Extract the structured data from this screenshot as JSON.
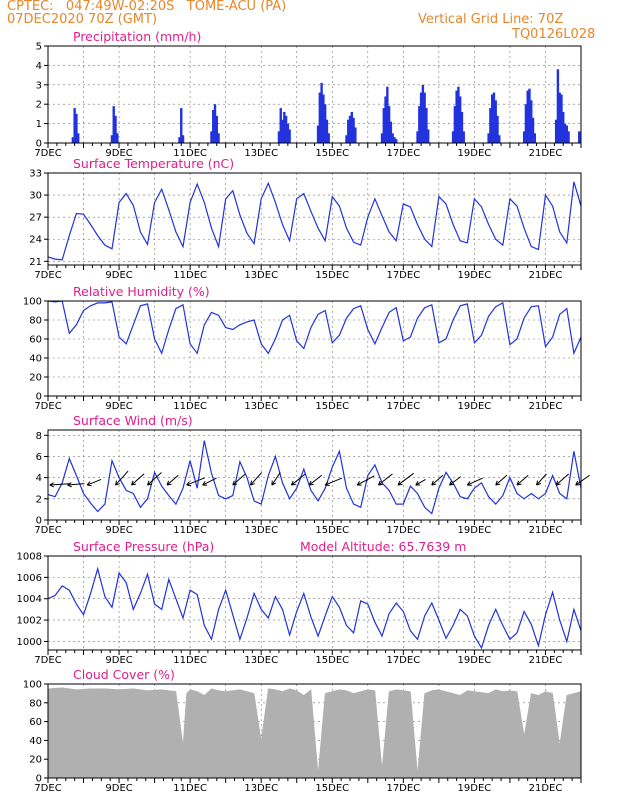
{
  "header": {
    "org_line": "CPTEC:   047:49W-02:20S   TOME-ACU (PA)",
    "date_line": "07DEC2020 70Z (GMT)",
    "grid_line": "Vertical Grid Line: 70Z",
    "code": "TQ0126L028"
  },
  "colors": {
    "header": "#e8862a",
    "title": "#e01e8c",
    "series": "#2233dd",
    "cloud": "#b0b0b0",
    "wind_arrow": "#000000"
  },
  "chart_data": [
    {
      "type": "bar",
      "title": "Precipitation (mm/h)",
      "x_unit": "day",
      "xlim": [
        7,
        22
      ],
      "ylim": [
        0,
        5
      ],
      "yticks": [
        0,
        1,
        2,
        3,
        4,
        5
      ],
      "xtick_labels": [
        "7DEC",
        "9DEC",
        "11DEC",
        "13DEC",
        "15DEC",
        "17DEC",
        "19DEC",
        "21DEC"
      ],
      "x": [
        7.7,
        7.75,
        7.8,
        7.85,
        8.8,
        8.85,
        8.9,
        8.95,
        10.7,
        10.75,
        10.8,
        11.6,
        11.65,
        11.7,
        11.75,
        11.8,
        13.5,
        13.55,
        13.6,
        13.65,
        13.7,
        13.75,
        13.8,
        14.6,
        14.65,
        14.7,
        14.75,
        14.8,
        14.85,
        14.9,
        15.4,
        15.45,
        15.5,
        15.55,
        15.6,
        15.65,
        16.4,
        16.45,
        16.5,
        16.55,
        16.6,
        16.65,
        16.7,
        16.75,
        16.8,
        17.4,
        17.45,
        17.5,
        17.55,
        17.6,
        17.65,
        17.7,
        18.4,
        18.45,
        18.5,
        18.55,
        18.6,
        18.65,
        18.7,
        19.4,
        19.45,
        19.5,
        19.55,
        19.6,
        19.65,
        19.7,
        20.4,
        20.45,
        20.5,
        20.55,
        20.6,
        20.65,
        20.7,
        21.3,
        21.35,
        21.4,
        21.45,
        21.5,
        21.55,
        21.6,
        21.65,
        21.95
      ],
      "values": [
        0.3,
        1.8,
        1.5,
        0.5,
        0.4,
        1.9,
        1.4,
        0.5,
        0.3,
        1.8,
        0.4,
        0.6,
        1.7,
        2.0,
        1.4,
        0.5,
        0.6,
        1.8,
        1.2,
        1.6,
        1.4,
        1.0,
        0.7,
        0.9,
        2.6,
        3.1,
        2.5,
        2.0,
        1.2,
        0.5,
        0.4,
        1.2,
        1.4,
        1.6,
        1.3,
        0.8,
        0.5,
        1.8,
        2.4,
        2.9,
        1.9,
        1.1,
        0.5,
        0.3,
        0.2,
        0.6,
        1.9,
        2.6,
        3.0,
        2.6,
        1.8,
        0.7,
        0.6,
        1.9,
        2.7,
        2.9,
        2.4,
        1.6,
        0.6,
        0.5,
        1.8,
        2.5,
        2.6,
        2.2,
        1.4,
        0.4,
        0.6,
        2.0,
        2.7,
        2.8,
        2.2,
        1.3,
        0.5,
        1.2,
        3.8,
        2.6,
        2.5,
        1.6,
        1.0,
        0.9,
        0.6,
        0.6
      ]
    },
    {
      "type": "line",
      "title": "Surface Temperature (nC)",
      "xlim": [
        7,
        22
      ],
      "ylim": [
        20.5,
        33
      ],
      "yticks": [
        21,
        24,
        27,
        30,
        33
      ],
      "xtick_labels": [
        "7DEC",
        "9DEC",
        "11DEC",
        "13DEC",
        "15DEC",
        "17DEC",
        "19DEC",
        "21DEC"
      ],
      "x": [
        7,
        7.2,
        7.4,
        7.6,
        7.8,
        8.0,
        8.2,
        8.4,
        8.6,
        8.8,
        9.0,
        9.2,
        9.4,
        9.6,
        9.8,
        10.0,
        10.2,
        10.4,
        10.6,
        10.8,
        11.0,
        11.2,
        11.4,
        11.6,
        11.8,
        12.0,
        12.2,
        12.4,
        12.6,
        12.8,
        13.0,
        13.2,
        13.4,
        13.6,
        13.8,
        14.0,
        14.2,
        14.4,
        14.6,
        14.8,
        15.0,
        15.2,
        15.4,
        15.6,
        15.8,
        16.0,
        16.2,
        16.4,
        16.6,
        16.8,
        17.0,
        17.2,
        17.4,
        17.6,
        17.8,
        18.0,
        18.2,
        18.4,
        18.6,
        18.8,
        19.0,
        19.2,
        19.4,
        19.6,
        19.8,
        20.0,
        20.2,
        20.4,
        20.6,
        20.8,
        21.0,
        21.2,
        21.4,
        21.6,
        21.8,
        22.0
      ],
      "values": [
        21.6,
        21.3,
        21.2,
        24.5,
        27.5,
        27.4,
        26.0,
        24.5,
        23.2,
        22.7,
        29.0,
        30.2,
        28.6,
        25.0,
        23.3,
        29.0,
        30.8,
        28.0,
        25.0,
        23.0,
        29.0,
        31.5,
        29.0,
        25.5,
        23.0,
        29.5,
        30.6,
        27.3,
        24.8,
        23.4,
        29.5,
        31.6,
        29.0,
        26.0,
        23.8,
        29.5,
        30.2,
        27.8,
        25.5,
        23.8,
        29.8,
        28.5,
        25.5,
        23.6,
        23.2,
        27.0,
        29.5,
        27.2,
        25.0,
        23.8,
        28.8,
        28.4,
        26.0,
        24.0,
        23.0,
        29.8,
        28.8,
        26.0,
        23.8,
        23.5,
        29.5,
        28.4,
        26.0,
        24.0,
        23.2,
        29.5,
        28.5,
        25.5,
        23.0,
        22.6,
        30.0,
        28.5,
        25.0,
        23.5,
        31.8,
        28.5
      ]
    },
    {
      "type": "line",
      "title": "Relative Humidity (%)",
      "xlim": [
        7,
        22
      ],
      "ylim": [
        0,
        100
      ],
      "yticks": [
        0,
        20,
        40,
        60,
        80,
        100
      ],
      "xtick_labels": [
        "7DEC",
        "9DEC",
        "11DEC",
        "13DEC",
        "15DEC",
        "17DEC",
        "19DEC",
        "21DEC"
      ],
      "x": [
        7,
        7.2,
        7.4,
        7.6,
        7.8,
        8.0,
        8.2,
        8.4,
        8.6,
        8.8,
        9.0,
        9.2,
        9.4,
        9.6,
        9.8,
        10.0,
        10.2,
        10.4,
        10.6,
        10.8,
        11.0,
        11.2,
        11.4,
        11.6,
        11.8,
        12.0,
        12.2,
        12.4,
        12.6,
        12.8,
        13.0,
        13.2,
        13.4,
        13.6,
        13.8,
        14.0,
        14.2,
        14.4,
        14.6,
        14.8,
        15.0,
        15.2,
        15.4,
        15.6,
        15.8,
        16.0,
        16.2,
        16.4,
        16.6,
        16.8,
        17.0,
        17.2,
        17.4,
        17.6,
        17.8,
        18.0,
        18.2,
        18.4,
        18.6,
        18.8,
        19.0,
        19.2,
        19.4,
        19.6,
        19.8,
        20.0,
        20.2,
        20.4,
        20.6,
        20.8,
        21.0,
        21.2,
        21.4,
        21.6,
        21.8,
        22.0
      ],
      "values": [
        100,
        99,
        100,
        66,
        75,
        90,
        95,
        98,
        98,
        99,
        62,
        55,
        75,
        95,
        97,
        60,
        45,
        70,
        92,
        96,
        55,
        45,
        75,
        88,
        85,
        72,
        70,
        75,
        78,
        80,
        55,
        45,
        60,
        80,
        85,
        58,
        50,
        72,
        86,
        90,
        56,
        64,
        82,
        92,
        95,
        70,
        55,
        72,
        88,
        93,
        58,
        62,
        82,
        93,
        96,
        56,
        60,
        80,
        95,
        97,
        56,
        64,
        84,
        94,
        98,
        54,
        60,
        82,
        94,
        95,
        52,
        62,
        86,
        92,
        45,
        62
      ]
    },
    {
      "type": "line",
      "title": "Surface Wind (m/s)",
      "xlim": [
        7,
        22
      ],
      "ylim": [
        0,
        8.5
      ],
      "yticks": [
        0,
        2,
        4,
        6,
        8
      ],
      "xtick_labels": [
        "7DEC",
        "9DEC",
        "11DEC",
        "13DEC",
        "15DEC",
        "17DEC",
        "19DEC",
        "21DEC"
      ],
      "x": [
        7,
        7.2,
        7.4,
        7.6,
        7.8,
        8.0,
        8.2,
        8.4,
        8.6,
        8.8,
        9.0,
        9.2,
        9.4,
        9.6,
        9.8,
        10.0,
        10.2,
        10.4,
        10.6,
        10.8,
        11.0,
        11.2,
        11.4,
        11.6,
        11.8,
        12.0,
        12.2,
        12.4,
        12.6,
        12.8,
        13.0,
        13.2,
        13.4,
        13.6,
        13.8,
        14.0,
        14.2,
        14.4,
        14.6,
        14.8,
        15.0,
        15.2,
        15.4,
        15.6,
        15.8,
        16.0,
        16.2,
        16.4,
        16.6,
        16.8,
        17.0,
        17.2,
        17.4,
        17.6,
        17.8,
        18.0,
        18.2,
        18.4,
        18.6,
        18.8,
        19.0,
        19.2,
        19.4,
        19.6,
        19.8,
        20.0,
        20.2,
        20.4,
        20.6,
        20.8,
        21.0,
        21.2,
        21.4,
        21.6,
        21.8,
        22.0
      ],
      "values": [
        2.4,
        2.2,
        3.5,
        5.8,
        4.2,
        2.5,
        1.6,
        0.8,
        1.5,
        5.6,
        4.0,
        2.8,
        2.5,
        1.2,
        2.0,
        4.5,
        3.2,
        2.3,
        1.5,
        3.0,
        5.6,
        3.0,
        7.5,
        4.4,
        2.3,
        2.0,
        2.3,
        5.5,
        4.0,
        1.8,
        1.5,
        4.2,
        6.0,
        3.5,
        2.0,
        3.0,
        4.8,
        2.8,
        1.8,
        3.0,
        5.0,
        6.5,
        3.0,
        1.5,
        1.2,
        4.2,
        5.2,
        3.5,
        2.8,
        1.5,
        1.5,
        3.2,
        2.5,
        1.2,
        0.6,
        3.0,
        4.5,
        3.5,
        2.2,
        2.0,
        3.0,
        3.5,
        2.2,
        1.5,
        2.3,
        4.0,
        2.5,
        2.0,
        2.5,
        2.0,
        2.5,
        4.2,
        2.5,
        2.0,
        6.5,
        3.0
      ],
      "arrows": [
        {
          "x": 7.05,
          "u": 1.5,
          "v": 0.1
        },
        {
          "x": 7.55,
          "u": 1.2,
          "v": 0.1
        },
        {
          "x": 8.1,
          "u": 1.0,
          "v": 0.4
        },
        {
          "x": 8.9,
          "u": 0.9,
          "v": 1.0
        },
        {
          "x": 9.35,
          "u": 0.9,
          "v": 0.8
        },
        {
          "x": 9.8,
          "u": 1.0,
          "v": 0.9
        },
        {
          "x": 10.35,
          "u": 0.8,
          "v": 0.7
        },
        {
          "x": 10.9,
          "u": 1.5,
          "v": 0.6
        },
        {
          "x": 11.35,
          "u": 1.0,
          "v": 0.5
        },
        {
          "x": 12.2,
          "u": 0.9,
          "v": 0.8
        },
        {
          "x": 12.7,
          "u": 0.8,
          "v": 0.9
        },
        {
          "x": 13.3,
          "u": 0.6,
          "v": 0.9
        },
        {
          "x": 13.85,
          "u": 1.0,
          "v": 0.8
        },
        {
          "x": 14.35,
          "u": 0.9,
          "v": 0.7
        },
        {
          "x": 14.8,
          "u": 1.2,
          "v": 0.5
        },
        {
          "x": 15.7,
          "u": 1.3,
          "v": 0.7
        },
        {
          "x": 16.3,
          "u": 1.0,
          "v": 0.8
        },
        {
          "x": 16.85,
          "u": 1.2,
          "v": 0.9
        },
        {
          "x": 17.35,
          "u": 0.7,
          "v": 0.4
        },
        {
          "x": 17.8,
          "u": 0.8,
          "v": 0.7
        },
        {
          "x": 18.3,
          "u": 0.8,
          "v": 0.6
        },
        {
          "x": 18.8,
          "u": 1.1,
          "v": 0.5
        },
        {
          "x": 19.6,
          "u": 0.8,
          "v": 0.7
        },
        {
          "x": 20.2,
          "u": 0.8,
          "v": 0.7
        },
        {
          "x": 20.75,
          "u": 0.7,
          "v": 0.8
        },
        {
          "x": 21.3,
          "u": 0.9,
          "v": 0.8
        },
        {
          "x": 21.85,
          "u": 1.0,
          "v": 0.7
        }
      ]
    },
    {
      "type": "line",
      "title": "Surface Pressure (hPa)",
      "annotation": "Model Altitude: 65.7639 m",
      "xlim": [
        7,
        22
      ],
      "ylim": [
        999.2,
        1008
      ],
      "yticks": [
        1000,
        1002,
        1004,
        1006,
        1008
      ],
      "xtick_labels": [
        "7DEC",
        "9DEC",
        "11DEC",
        "13DEC",
        "15DEC",
        "17DEC",
        "19DEC",
        "21DEC"
      ],
      "x": [
        7,
        7.2,
        7.4,
        7.6,
        7.8,
        8.0,
        8.2,
        8.4,
        8.6,
        8.8,
        9.0,
        9.2,
        9.4,
        9.6,
        9.8,
        10.0,
        10.2,
        10.4,
        10.6,
        10.8,
        11.0,
        11.2,
        11.4,
        11.6,
        11.8,
        12.0,
        12.2,
        12.4,
        12.6,
        12.8,
        13.0,
        13.2,
        13.4,
        13.6,
        13.8,
        14.0,
        14.2,
        14.4,
        14.6,
        14.8,
        15.0,
        15.2,
        15.4,
        15.6,
        15.8,
        16.0,
        16.2,
        16.4,
        16.6,
        16.8,
        17.0,
        17.2,
        17.4,
        17.6,
        17.8,
        18.0,
        18.2,
        18.4,
        18.6,
        18.8,
        19.0,
        19.2,
        19.4,
        19.6,
        19.8,
        20.0,
        20.2,
        20.4,
        20.6,
        20.8,
        21.0,
        21.2,
        21.4,
        21.6,
        21.8,
        22.0
      ],
      "values": [
        1004.0,
        1004.3,
        1005.2,
        1004.8,
        1003.5,
        1002.5,
        1004.5,
        1006.8,
        1004.2,
        1003.2,
        1006.4,
        1005.5,
        1003.0,
        1004.5,
        1006.3,
        1003.5,
        1003.0,
        1005.8,
        1004.0,
        1002.2,
        1004.8,
        1004.4,
        1001.5,
        1000.2,
        1003.0,
        1004.8,
        1002.5,
        1000.2,
        1002.2,
        1004.5,
        1003.0,
        1002.2,
        1004.2,
        1003.0,
        1000.6,
        1002.8,
        1004.5,
        1002.3,
        1000.5,
        1002.4,
        1004.2,
        1003.2,
        1001.5,
        1000.8,
        1003.8,
        1003.5,
        1001.8,
        1000.5,
        1002.6,
        1003.6,
        1002.8,
        1001.0,
        1000.2,
        1002.4,
        1003.6,
        1002.0,
        1000.3,
        1001.5,
        1003.0,
        1002.4,
        1000.5,
        999.4,
        1001.5,
        1003.0,
        1001.5,
        1000.2,
        1000.8,
        1002.8,
        1001.6,
        999.6,
        1002.5,
        1004.6,
        1002.0,
        1000.0,
        1003.0,
        1001.0
      ]
    },
    {
      "type": "area",
      "title": "Cloud Cover (%)",
      "xlim": [
        7,
        22
      ],
      "ylim": [
        0,
        100
      ],
      "yticks": [
        0,
        20,
        40,
        60,
        80,
        100
      ],
      "xtick_labels": [
        "7DEC",
        "9DEC",
        "11DEC",
        "13DEC",
        "15DEC",
        "17DEC",
        "19DEC",
        "21DEC"
      ],
      "x": [
        7,
        7.4,
        7.8,
        8.2,
        8.6,
        9.0,
        9.4,
        9.8,
        10.2,
        10.6,
        10.8,
        10.9,
        11.0,
        11.2,
        11.4,
        11.6,
        11.8,
        12.0,
        12.2,
        12.4,
        12.6,
        12.8,
        13.0,
        13.2,
        13.4,
        13.6,
        13.8,
        14.0,
        14.2,
        14.4,
        14.6,
        14.8,
        15.0,
        15.2,
        15.4,
        15.6,
        15.8,
        16.0,
        16.2,
        16.4,
        16.6,
        16.8,
        17.0,
        17.2,
        17.4,
        17.6,
        17.8,
        18.0,
        18.2,
        18.4,
        18.6,
        18.8,
        19.0,
        19.2,
        19.4,
        19.6,
        19.8,
        20.0,
        20.2,
        20.4,
        20.6,
        20.8,
        21.0,
        21.2,
        21.4,
        21.6,
        21.8,
        22.0
      ],
      "values": [
        95,
        96,
        94,
        95,
        95,
        94,
        95,
        93,
        94,
        92,
        35,
        90,
        94,
        92,
        88,
        95,
        93,
        92,
        93,
        94,
        92,
        90,
        40,
        95,
        94,
        92,
        95,
        93,
        88,
        94,
        5,
        90,
        92,
        94,
        93,
        90,
        92,
        94,
        93,
        10,
        92,
        94,
        93,
        92,
        5,
        90,
        93,
        94,
        92,
        90,
        88,
        93,
        92,
        91,
        90,
        94,
        92,
        93,
        92,
        45,
        90,
        88,
        92,
        90,
        35,
        88,
        90,
        92
      ]
    }
  ]
}
